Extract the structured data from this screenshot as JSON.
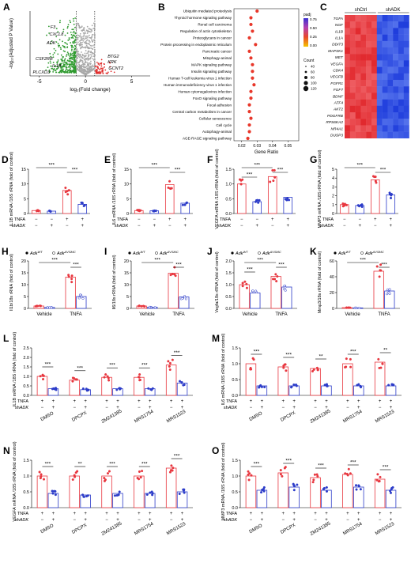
{
  "figure": {
    "A": {
      "letter": "A",
      "ylabel": "-log₁₀(Adjusted P Value)",
      "xlabel": "log₂(Fold change)",
      "xticks": [
        "-5",
        "0",
        "5"
      ],
      "labels_down": [
        "F3",
        "CXCL8",
        "ADK",
        "CSF2RB",
        "IL1B",
        "PLCXD3"
      ],
      "labels_up": [
        "BTG2",
        "KRK",
        "GCNT2"
      ]
    },
    "B": {
      "letter": "B",
      "xlabel": "Gene Ratio",
      "xticks": [
        "0.02",
        "0.03",
        "0.04",
        "0.05"
      ],
      "padj_title": "padj",
      "padj_ticks": [
        "0.75",
        "0.50",
        "0.25",
        "0.00"
      ],
      "count_title": "Count",
      "count_ticks": [
        "40",
        "60",
        "80",
        "100",
        "120"
      ],
      "pathways": [
        "Ubiquitin mediated proteolysis",
        "Thyroid hormone signaling pathway",
        "Renal cell carcinoma",
        "Regulation of actin cytoskeleton",
        "Proteoglycans in cancer",
        "Protein processing in endoplasmic reticulum",
        "Pancreatic cancer",
        "Mitophagy-animal",
        "MAPK signaling pathway",
        "Insulin signaling pathway",
        "Human T-cell leukemia virus 1 infection",
        "Human immunodeficiency virus 1 infection",
        "Human cytomegalovirus infection",
        "FoxO signaling pathway",
        "Focal adhesion",
        "Central carbon metabolism in cancer",
        "Cellular senescence",
        "Cell cycle",
        "Autophagy-animal",
        "AGE-RAGE signaling pathway"
      ],
      "ratios": [
        0.03,
        0.026,
        0.026,
        0.027,
        0.025,
        0.029,
        0.025,
        0.026,
        0.027,
        0.027,
        0.027,
        0.028,
        0.026,
        0.026,
        0.025,
        0.025,
        0.026,
        0.025,
        0.025,
        0.024
      ]
    },
    "C": {
      "letter": "C",
      "col_ctrl": "shCtrl",
      "col_adk": "shADK",
      "scale_top": "2",
      "scale_mid": "0",
      "scale_bot": "-1",
      "genes": [
        "TGFA",
        "NGF",
        "IL1B",
        "IL1A",
        "DDIT3",
        "MAP2K1",
        "MET",
        "VEGFA",
        "CDK4",
        "VEGFB",
        "FGFR1",
        "FGF7",
        "BDNF",
        "ATF4",
        "AKT2",
        "PDGFRB",
        "RPS6KA2",
        "NR4A1",
        "DUSP3"
      ]
    },
    "human_panels": [
      {
        "letter": "D",
        "ylabel": "IL1B mRNA /18S rRNA (fold of control)",
        "yticks": [
          "0",
          "5",
          "10",
          "15"
        ],
        "ymax": 15,
        "values": [
          1.0,
          0.8,
          7.8,
          3.1
        ],
        "sig": [
          "***",
          "***"
        ]
      },
      {
        "letter": "E",
        "ylabel": "IL6 mRNA /18S rRNA (fold of control)",
        "yticks": [
          "0",
          "5",
          "10",
          "15"
        ],
        "ymax": 15,
        "values": [
          1.0,
          0.9,
          9.8,
          3.5
        ],
        "sig": [
          "***",
          "***"
        ]
      },
      {
        "letter": "F",
        "ylabel": "VEGFA mRNA /18S rRNA (fold of control)",
        "yticks": [
          "0.0",
          "0.5",
          "1.0",
          "1.5"
        ],
        "ymax": 1.5,
        "values": [
          1.0,
          0.4,
          1.25,
          0.55
        ],
        "sig": [
          "***",
          "***",
          "***"
        ]
      },
      {
        "letter": "G",
        "ylabel": "MMP3 mRNA /18S rRNA (fold of control)",
        "yticks": [
          "0",
          "1",
          "2",
          "3",
          "4",
          "5"
        ],
        "ymax": 5,
        "values": [
          1.0,
          0.9,
          3.8,
          2.1
        ],
        "sig": [
          "***",
          "***"
        ]
      }
    ],
    "mouse_panels": [
      {
        "letter": "H",
        "ylabel": "Il1b/18s rRNA (fold of control)",
        "yticks": [
          "0",
          "5",
          "10",
          "15",
          "20"
        ],
        "ymax": 20,
        "values": [
          1.0,
          0.4,
          13.2,
          5.0
        ],
        "sig": [
          "***",
          "***"
        ]
      },
      {
        "letter": "I",
        "ylabel": "Il6/18s rRNA (fold of control)",
        "yticks": [
          "0",
          "5",
          "10",
          "15",
          "20"
        ],
        "ymax": 20,
        "values": [
          1.0,
          0.5,
          14.8,
          4.8
        ],
        "sig": [
          "***",
          "***"
        ]
      },
      {
        "letter": "J",
        "ylabel": "Vegfa/18s rRNA (fold of control)",
        "yticks": [
          "0.0",
          "0.5",
          "1.0",
          "1.5",
          "2.0"
        ],
        "ymax": 2,
        "values": [
          1.0,
          0.65,
          1.35,
          0.9
        ],
        "sig": [
          "***",
          "***",
          "***"
        ]
      },
      {
        "letter": "K",
        "ylabel": "Mmp3/18s rRNA (fold of control)",
        "yticks": [
          "0",
          "20",
          "40",
          "60"
        ],
        "ymax": 60,
        "values": [
          1.0,
          0.6,
          47.0,
          22.0
        ],
        "sig": [
          "***",
          "***"
        ]
      }
    ],
    "mouse_legend": {
      "wt": "Adk",
      "wt_sup": "WT",
      "ko": "Adk",
      "ko_sup": "ΔVSMC"
    },
    "mouse_groups": [
      "Vehicle",
      "TNFA"
    ],
    "row_labels": {
      "tnfa": "TNFA",
      "shadk_prefix": "sh",
      "shadk_gene": "ADK",
      "plus": "+",
      "minus": "−"
    },
    "human_conditions": [
      [
        "−",
        "−",
        "+",
        "+"
      ],
      [
        "−",
        "+",
        "−",
        "+"
      ]
    ],
    "inhibitor_rows": {
      "tnfa": [
        "+",
        "+",
        "+",
        "+",
        "+",
        "+",
        "+",
        "+",
        "+",
        "+"
      ],
      "shadk": [
        "−",
        "+",
        "−",
        "+",
        "−",
        "+",
        "−",
        "+",
        "−",
        "+"
      ]
    },
    "inhibitors": [
      "DMSO",
      "DPCPX",
      "ZM241385",
      "MRS1754",
      "MRS1523"
    ],
    "inhibitor_panels": [
      {
        "letter": "L",
        "ylabel": "IL1B mRNA /18S rRNA (fold of control)",
        "yticks": [
          "0.0",
          "0.5",
          "1.0",
          "1.5",
          "2.0",
          "2.5"
        ],
        "ymax": 2.5,
        "values": [
          1.0,
          0.35,
          0.8,
          0.3,
          0.95,
          0.35,
          0.95,
          0.35,
          1.6,
          0.65
        ],
        "sig": [
          "***",
          "***",
          "***",
          "***",
          "***"
        ]
      },
      {
        "letter": "M",
        "ylabel": "IL6 mRNA /18S rRNA (fold of control)",
        "yticks": [
          "0.0",
          "0.5",
          "1.0",
          "1.5"
        ],
        "ymax": 1.5,
        "values": [
          1.0,
          0.3,
          0.9,
          0.3,
          0.85,
          0.3,
          1.0,
          0.3,
          1.05,
          0.3
        ],
        "sig": [
          "***",
          "***",
          "**",
          "***",
          "**"
        ]
      },
      {
        "letter": "N",
        "ylabel": "VEGFA mRNA /18S rRNA (fold of control)",
        "yticks": [
          "0.0",
          "0.5",
          "1.0",
          "1.5"
        ],
        "ymax": 1.5,
        "values": [
          1.0,
          0.45,
          1.0,
          0.4,
          1.0,
          0.45,
          1.0,
          0.45,
          1.25,
          0.5
        ],
        "sig": [
          "***",
          "**",
          "***",
          "***",
          "***"
        ]
      },
      {
        "letter": "O",
        "ylabel": "MMP3 mRNA /18S rRNA (fold of control)",
        "yticks": [
          "0.0",
          "0.5",
          "1.0",
          "1.5"
        ],
        "ymax": 1.5,
        "values": [
          1.0,
          0.55,
          1.1,
          0.65,
          0.95,
          0.55,
          1.05,
          0.65,
          0.9,
          0.55
        ],
        "sig": [
          "***",
          "***",
          "***",
          "***",
          "***"
        ]
      }
    ],
    "colors": {
      "red": "#e8373f",
      "blue": "#2c3cc9",
      "up": "#e0302f",
      "down": "#2f9a2f",
      "ns": "#a9a9a9",
      "heat_hi": "#e8262b",
      "heat_lo": "#1f3fe0"
    }
  }
}
